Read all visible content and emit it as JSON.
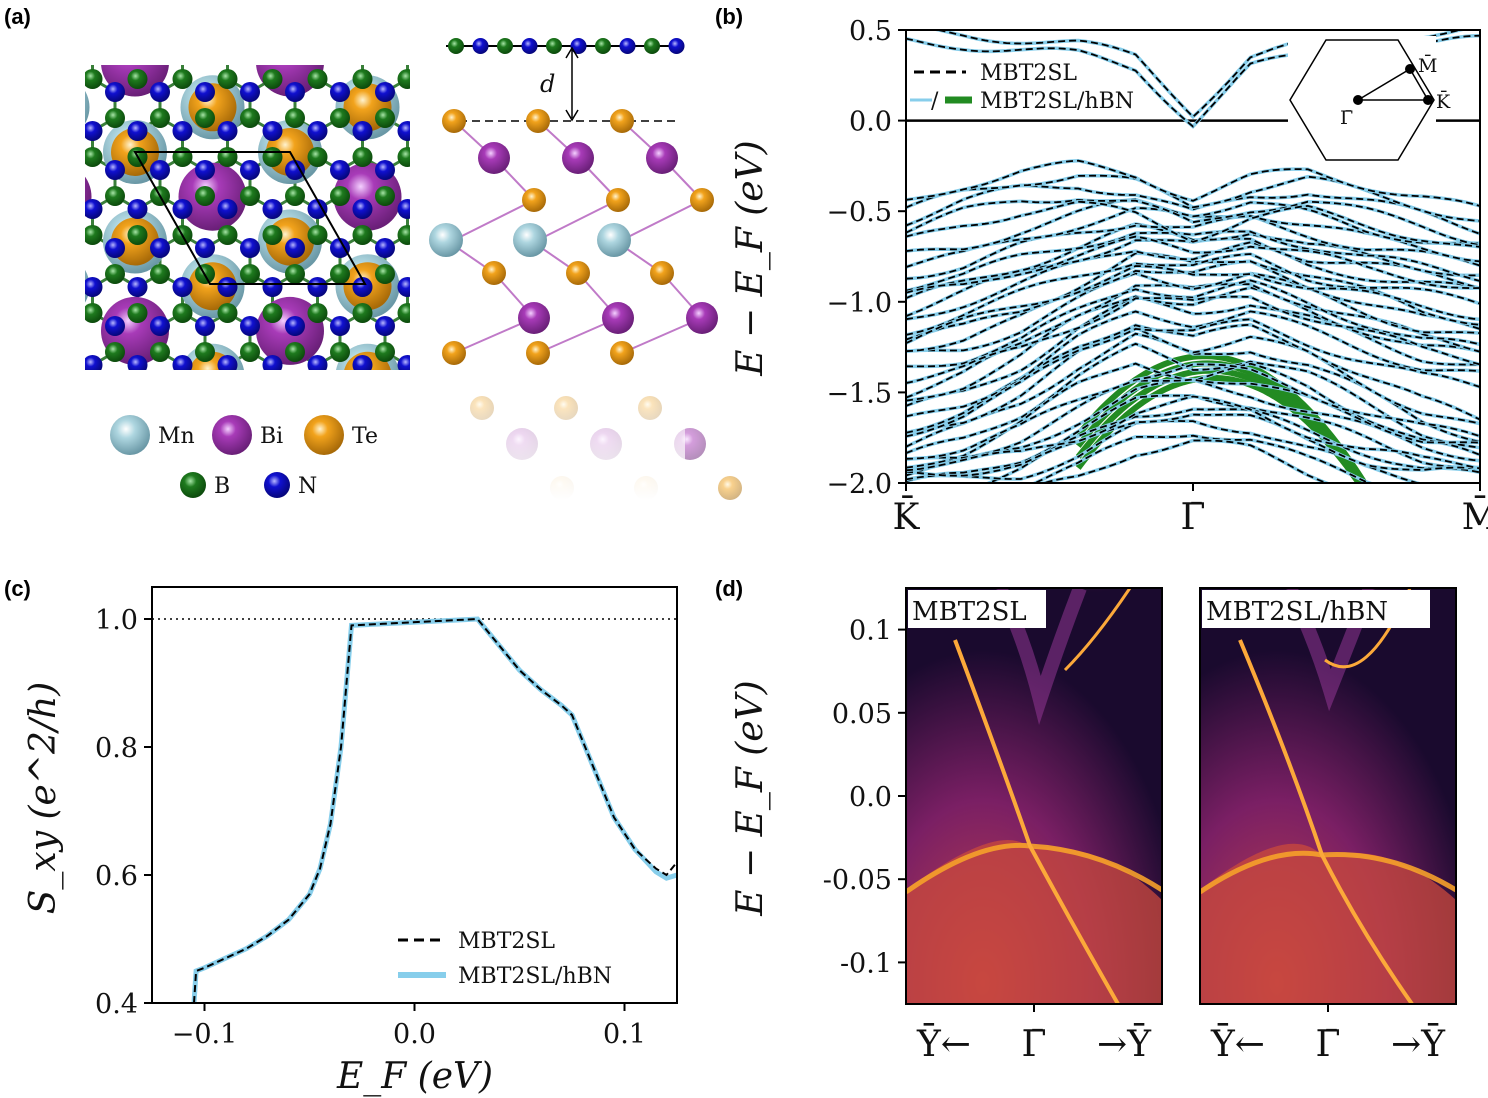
{
  "panels": {
    "a": {
      "label": "(a)",
      "distance_label": "d",
      "legend": [
        {
          "element": "Mn",
          "color": "#aed6e0"
        },
        {
          "element": "Bi",
          "color": "#a83bb8"
        },
        {
          "element": "Te",
          "color": "#f2a31c"
        },
        {
          "element": "B",
          "color": "#1e7a1e"
        },
        {
          "element": "N",
          "color": "#1010d0"
        }
      ]
    },
    "b": {
      "label": "(b)",
      "ylabel": "E − E_F (eV)",
      "legend": [
        "MBT2SL",
        "MBT2SL/hBN"
      ],
      "bz_labels": {
        "M": "M̄",
        "G": "Γ̄",
        "K": "K̄"
      },
      "colors": {
        "mbt": "#000000",
        "hbn": "#87ceeb",
        "hbn_bands": "#228b22"
      }
    },
    "c": {
      "label": "(c)",
      "xlabel": "E_F (eV)",
      "ylabel": "S_xy (e^2/h)",
      "legend": [
        "MBT2SL",
        "MBT2SL/hBN"
      ]
    },
    "d": {
      "label": "(d)",
      "ylabel": "E − E_F (eV)",
      "titles": [
        "MBT2SL",
        "MBT2SL/hBN"
      ],
      "xticks": [
        "Ȳ←",
        "Γ̄",
        "→Ȳ"
      ]
    }
  },
  "chart_data": [
    {
      "panel": "b",
      "type": "line",
      "x_ticks": [
        "K̄",
        "Γ̄",
        "M̄"
      ],
      "ylim": [
        -2.0,
        0.5
      ],
      "y_ticks": [
        "0.5",
        "0.0",
        "−0.5",
        "−1.0",
        "−1.5",
        "−2.0"
      ],
      "series": [
        {
          "name": "MBT2SL",
          "style": "dashed",
          "color": "#000000"
        },
        {
          "name": "MBT2SL/hBN",
          "style": "solid",
          "color": "#87ceeb"
        }
      ],
      "x": [
        0,
        0.1,
        0.2,
        0.3,
        0.4,
        0.5,
        0.6,
        0.7,
        0.8,
        0.9,
        1.0
      ],
      "bands": [
        [
          -1.8,
          -1.7,
          -1.55,
          -1.35,
          -1.2,
          -1.3,
          -1.25,
          -1.35,
          -1.5,
          -1.65,
          -1.75
        ],
        [
          -1.6,
          -1.5,
          -1.35,
          -1.15,
          -1.0,
          -1.05,
          -1.0,
          -1.1,
          -1.2,
          -1.3,
          -1.35
        ],
        [
          -1.3,
          -1.25,
          -1.15,
          -1.0,
          -0.85,
          -0.9,
          -0.85,
          -0.95,
          -1.05,
          -1.15,
          -1.2
        ],
        [
          -1.1,
          -1.0,
          -0.9,
          -0.8,
          -0.7,
          -0.75,
          -0.7,
          -0.8,
          -0.85,
          -0.9,
          -0.95
        ],
        [
          -0.85,
          -0.8,
          -0.7,
          -0.62,
          -0.55,
          -0.6,
          -0.55,
          -0.62,
          -0.7,
          -0.75,
          -0.8
        ],
        [
          -0.55,
          -0.45,
          -0.38,
          -0.35,
          -0.4,
          -0.52,
          -0.42,
          -0.38,
          -0.45,
          -0.52,
          -0.6
        ],
        [
          -1.95,
          -1.9,
          -1.8,
          -1.65,
          -1.5,
          -1.45,
          -1.5,
          -1.6,
          -1.7,
          -1.8,
          -1.85
        ],
        [
          -2.0,
          -1.98,
          -1.95,
          -1.85,
          -1.7,
          -1.65,
          -1.7,
          -1.82,
          -1.92,
          -1.98,
          -2.0
        ],
        [
          0.5,
          0.48,
          0.45,
          0.42,
          0.35,
          0.05,
          0.35,
          0.42,
          0.45,
          0.48,
          0.5
        ]
      ]
    },
    {
      "panel": "c",
      "type": "line",
      "xlim": [
        -0.125,
        0.125
      ],
      "ylim": [
        0.4,
        1.05
      ],
      "x_ticks": [
        "−0.1",
        "0.0",
        "0.1"
      ],
      "y_ticks": [
        "0.4",
        "0.6",
        "0.8",
        "1.0"
      ],
      "reference_y": 1.0,
      "series": [
        {
          "name": "MBT2SL",
          "style": "dashed",
          "color": "#000000",
          "x": [
            -0.105,
            -0.104,
            -0.1,
            -0.09,
            -0.08,
            -0.07,
            -0.06,
            -0.05,
            -0.045,
            -0.04,
            -0.035,
            -0.03,
            0.03,
            0.04,
            0.05,
            0.06,
            0.07,
            0.075,
            0.085,
            0.095,
            0.105,
            0.115,
            0.12,
            0.125
          ],
          "y": [
            0.4,
            0.45,
            0.455,
            0.47,
            0.485,
            0.505,
            0.53,
            0.57,
            0.61,
            0.68,
            0.8,
            0.99,
            1.0,
            0.96,
            0.92,
            0.89,
            0.865,
            0.85,
            0.77,
            0.69,
            0.64,
            0.61,
            0.6,
            0.62
          ]
        },
        {
          "name": "MBT2SL/hBN",
          "style": "solid",
          "color": "#87ceeb",
          "x": [
            -0.105,
            -0.104,
            -0.1,
            -0.09,
            -0.08,
            -0.07,
            -0.06,
            -0.05,
            -0.045,
            -0.04,
            -0.035,
            -0.03,
            0.03,
            0.04,
            0.05,
            0.06,
            0.07,
            0.075,
            0.085,
            0.095,
            0.105,
            0.115,
            0.12,
            0.125
          ],
          "y": [
            0.4,
            0.45,
            0.455,
            0.47,
            0.485,
            0.505,
            0.53,
            0.57,
            0.61,
            0.68,
            0.8,
            0.99,
            1.0,
            0.96,
            0.92,
            0.89,
            0.865,
            0.85,
            0.77,
            0.69,
            0.64,
            0.605,
            0.595,
            0.6
          ]
        }
      ]
    },
    {
      "panel": "d",
      "type": "heatmap",
      "ylim": [
        -0.125,
        0.125
      ],
      "y_ticks": [
        "0.1",
        "0.05",
        "0.0",
        "-0.05",
        "-0.1"
      ],
      "x_ticks": [
        "Ȳ←",
        "Γ̄",
        "→Ȳ"
      ]
    }
  ]
}
